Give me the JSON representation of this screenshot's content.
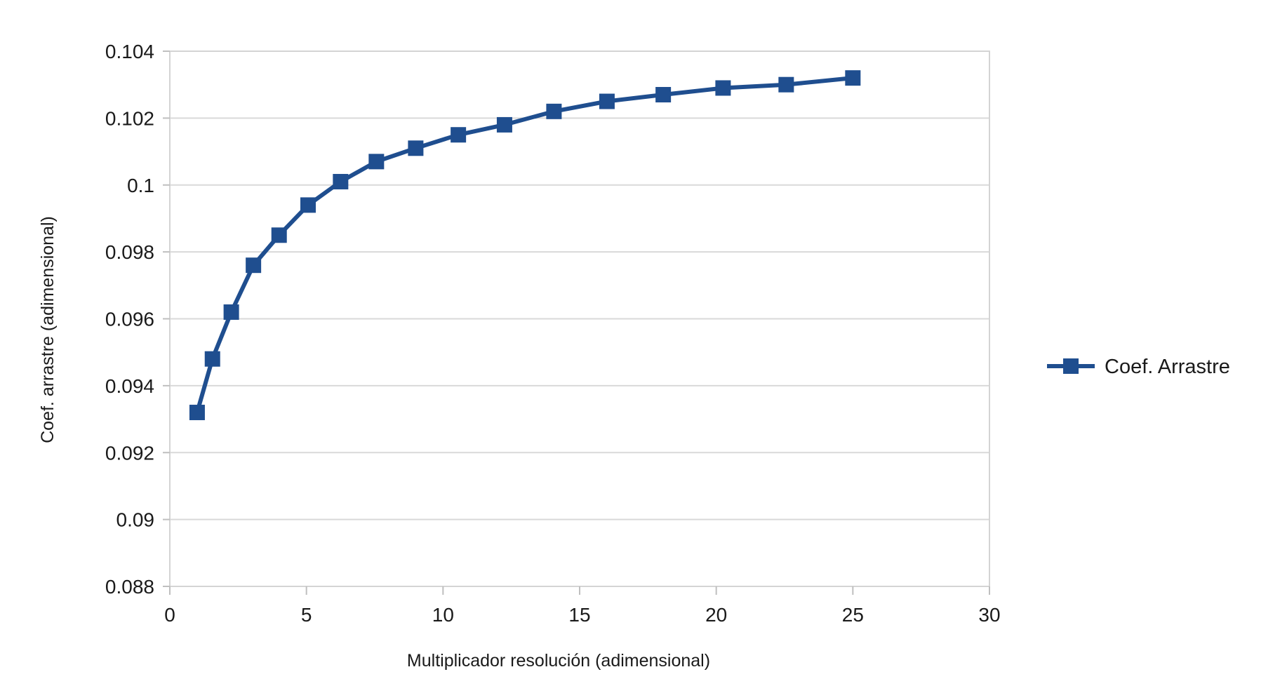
{
  "chart_data": {
    "type": "line",
    "xlabel": "Multiplicador resolución (adimensional)",
    "ylabel": "Coef. arrastre (adimensional)",
    "xlim": [
      0,
      30
    ],
    "ylim": [
      0.088,
      0.104
    ],
    "x_ticks": [
      "0",
      "5",
      "10",
      "15",
      "20",
      "25",
      "30"
    ],
    "x_tick_values": [
      0,
      5,
      10,
      15,
      20,
      25,
      30
    ],
    "y_ticks": [
      "0.104",
      "0.102",
      "0.1",
      "0.098",
      "0.096",
      "0.094",
      "0.092",
      "0.09",
      "0.088"
    ],
    "y_tick_values": [
      0.104,
      0.102,
      0.1,
      0.098,
      0.096,
      0.094,
      0.092,
      0.09,
      0.088
    ],
    "grid": "horizontal",
    "legend_position": "right",
    "series": [
      {
        "name": "Coef. Arrastre",
        "color": "#1f4e8f",
        "marker": "square",
        "x": [
          1,
          1.56,
          2.25,
          3.06,
          4,
          5.06,
          6.25,
          7.56,
          9,
          10.56,
          12.25,
          14.06,
          16,
          18.06,
          20.25,
          22.56,
          25
        ],
        "y": [
          0.0932,
          0.0948,
          0.0962,
          0.0976,
          0.0985,
          0.0994,
          0.1001,
          0.1007,
          0.1011,
          0.1015,
          0.1018,
          0.1022,
          0.1025,
          0.1027,
          0.1029,
          0.103,
          0.1032
        ]
      }
    ]
  }
}
